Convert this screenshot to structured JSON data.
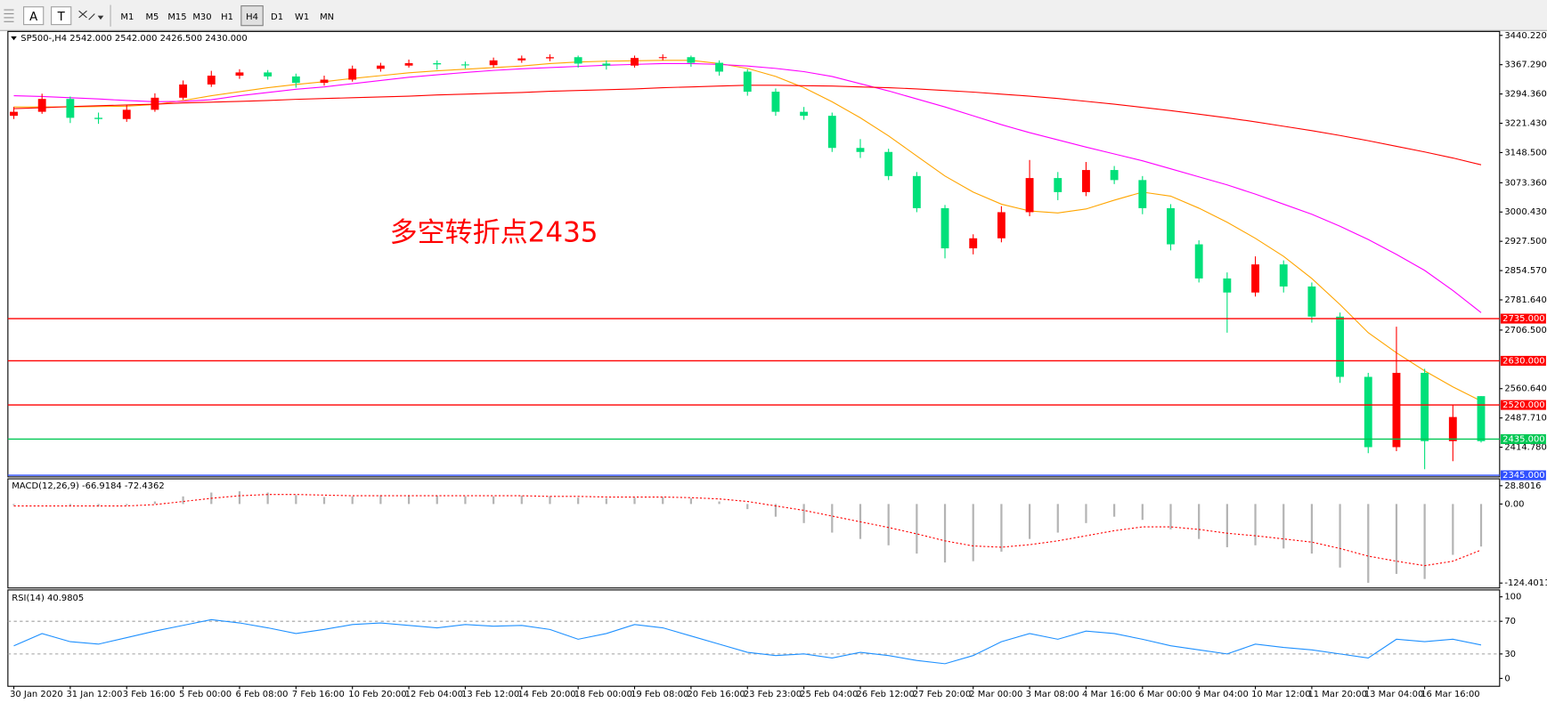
{
  "toolbar": {
    "tools": [
      "A",
      "T"
    ],
    "timeframes": [
      "M1",
      "M5",
      "M15",
      "M30",
      "H1",
      "H4",
      "D1",
      "W1",
      "MN"
    ],
    "active": "H4"
  },
  "chart_data": [
    {
      "type": "candlestick",
      "title": "SP500-,H4  2542.000 2542.000 2426.500 2430.000",
      "annotation": "多空转折点2435",
      "annotation_color": "#ff0000",
      "up_color": "#ff0000",
      "down_color": "#00e07a",
      "x": [
        "30 Jan 2020",
        null,
        "31 Jan 12:00",
        null,
        "3 Feb 16:00",
        null,
        "5 Feb 00:00",
        null,
        "6 Feb 08:00",
        null,
        "7 Feb 16:00",
        null,
        "10 Feb 20:00",
        null,
        "12 Feb 04:00",
        null,
        "13 Feb 12:00",
        null,
        "14 Feb 20:00",
        null,
        "18 Feb 00:00",
        null,
        "19 Feb 08:00",
        null,
        "20 Feb 16:00",
        null,
        "23 Feb 23:00",
        null,
        "25 Feb 04:00",
        null,
        "26 Feb 12:00",
        null,
        "27 Feb 20:00",
        null,
        "2 Mar 00:00",
        null,
        "3 Mar 08:00",
        null,
        "4 Mar 16:00",
        null,
        "6 Mar 00:00",
        null,
        "9 Mar 04:00",
        null,
        "10 Mar 12:00",
        null,
        "11 Mar 20:00",
        null,
        "13 Mar 04:00",
        null,
        "16 Mar 16:00",
        null,
        null
      ],
      "open": [
        3240,
        3250,
        3282,
        3235,
        3232,
        3255,
        3285,
        3318,
        3340,
        3348,
        3338,
        3322,
        3330,
        3357,
        3365,
        3371,
        3368,
        3366,
        3378,
        3383,
        3386,
        3370,
        3365,
        3384,
        3386,
        3372,
        3350,
        3300,
        3250,
        3240,
        3160,
        3150,
        3090,
        3010,
        2910,
        2935,
        3000,
        3085,
        3050,
        3105,
        3080,
        3010,
        2920,
        2835,
        2800,
        2870,
        2815,
        2740,
        2590,
        2415,
        2600,
        2430,
        2542
      ],
      "high": [
        3262,
        3295,
        3288,
        3248,
        3266,
        3296,
        3328,
        3352,
        3356,
        3354,
        3345,
        3340,
        3365,
        3372,
        3380,
        3378,
        3375,
        3385,
        3390,
        3393,
        3390,
        3378,
        3390,
        3393,
        3390,
        3378,
        3356,
        3308,
        3262,
        3248,
        3182,
        3158,
        3100,
        3018,
        2945,
        3015,
        3130,
        3100,
        3125,
        3115,
        3090,
        3020,
        2930,
        2850,
        2890,
        2880,
        2825,
        2750,
        2600,
        2715,
        2610,
        2520,
        2542
      ],
      "low": [
        3232,
        3245,
        3222,
        3220,
        3225,
        3250,
        3280,
        3312,
        3332,
        3330,
        3310,
        3315,
        3325,
        3350,
        3360,
        3355,
        3358,
        3360,
        3372,
        3376,
        3360,
        3355,
        3360,
        3378,
        3362,
        3340,
        3290,
        3240,
        3230,
        3150,
        3135,
        3080,
        3000,
        2885,
        2895,
        2925,
        2990,
        3030,
        3040,
        3070,
        2995,
        2905,
        2825,
        2700,
        2790,
        2800,
        2725,
        2575,
        2400,
        2405,
        2360,
        2380,
        2426.5
      ],
      "close": [
        3250,
        3282,
        3235,
        3232,
        3255,
        3285,
        3318,
        3340,
        3348,
        3338,
        3322,
        3330,
        3357,
        3365,
        3371,
        3368,
        3366,
        3378,
        3383,
        3386,
        3370,
        3365,
        3384,
        3386,
        3372,
        3350,
        3300,
        3250,
        3240,
        3160,
        3150,
        3090,
        3010,
        2910,
        2935,
        3000,
        3085,
        3050,
        3105,
        3080,
        3010,
        2920,
        2835,
        2800,
        2870,
        2815,
        2740,
        2590,
        2415,
        2600,
        2430,
        2490,
        2430
      ],
      "series": [
        {
          "color": "#ffa500",
          "values": [
            3262,
            3262,
            3262,
            3263,
            3264,
            3268,
            3278,
            3290,
            3300,
            3310,
            3318,
            3325,
            3333,
            3340,
            3347,
            3352,
            3356,
            3360,
            3364,
            3370,
            3374,
            3376,
            3377,
            3378,
            3378,
            3370,
            3358,
            3338,
            3310,
            3275,
            3235,
            3190,
            3140,
            3090,
            3050,
            3020,
            3003,
            2998,
            3008,
            3030,
            3050,
            3040,
            3010,
            2975,
            2935,
            2890,
            2835,
            2770,
            2700,
            2650,
            2605,
            2565,
            2530
          ]
        },
        {
          "color": "#ff00ff",
          "values": [
            3290,
            3288,
            3285,
            3282,
            3278,
            3275,
            3276,
            3280,
            3290,
            3298,
            3306,
            3312,
            3320,
            3328,
            3336,
            3342,
            3348,
            3353,
            3357,
            3360,
            3363,
            3366,
            3368,
            3370,
            3370,
            3368,
            3364,
            3358,
            3350,
            3338,
            3320,
            3302,
            3282,
            3262,
            3240,
            3218,
            3198,
            3180,
            3162,
            3145,
            3128,
            3108,
            3088,
            3068,
            3045,
            3020,
            2995,
            2965,
            2932,
            2895,
            2855,
            2805,
            2750
          ]
        },
        {
          "color": "#ff0000",
          "values": [
            3258,
            3260,
            3263,
            3265,
            3267,
            3269,
            3272,
            3274,
            3276,
            3278,
            3281,
            3283,
            3285,
            3287,
            3289,
            3292,
            3294,
            3296,
            3298,
            3301,
            3303,
            3305,
            3307,
            3310,
            3312,
            3314,
            3316,
            3316,
            3315,
            3314,
            3312,
            3310,
            3307,
            3303,
            3299,
            3294,
            3289,
            3283,
            3276,
            3269,
            3261,
            3253,
            3244,
            3235,
            3225,
            3214,
            3203,
            3191,
            3178,
            3164,
            3150,
            3135,
            3118
          ]
        }
      ],
      "levels": [
        {
          "value": 2735,
          "label": "2735.000",
          "color": "#ff0000"
        },
        {
          "value": 2630,
          "label": "2630.000",
          "color": "#ff0000"
        },
        {
          "value": 2520,
          "label": "2520.000",
          "color": "#ff0000"
        },
        {
          "value": 2435,
          "label": "2435.000",
          "color": "#00c853"
        },
        {
          "value": 2345,
          "label": "2345.000",
          "color": "#2f4fff"
        }
      ],
      "ylim": [
        2341,
        3450
      ],
      "yticks": [
        {
          "value": 3440.22,
          "label": "3440.220"
        },
        {
          "value": 3367.29,
          "label": "3367.290"
        },
        {
          "value": 3294.36,
          "label": "3294.360"
        },
        {
          "value": 3221.43,
          "label": "3221.430"
        },
        {
          "value": 3148.5,
          "label": "3148.500"
        },
        {
          "value": 3073.36,
          "label": "3073.360"
        },
        {
          "value": 3000.43,
          "label": "3000.430"
        },
        {
          "value": 2927.5,
          "label": "2927.500"
        },
        {
          "value": 2854.57,
          "label": "2854.570"
        },
        {
          "value": 2781.64,
          "label": "2781.640"
        },
        {
          "value": 2706.5,
          "label": "2706.500"
        },
        {
          "value": 2560.64,
          "label": "2560.640"
        },
        {
          "value": 2487.71,
          "label": "2487.710"
        },
        {
          "value": 2414.78,
          "label": "2414.780"
        }
      ]
    },
    {
      "type": "macd",
      "title": "MACD(12,26,9) -66.9184 -72.4362",
      "hist_color": "#b4b4b4",
      "signal_color": "#ff0000",
      "values": [
        -2,
        0,
        -3,
        -4,
        -2,
        4,
        12,
        18,
        20,
        18,
        14,
        11,
        12,
        14,
        14,
        13,
        12,
        12,
        13,
        12,
        10,
        9,
        10,
        11,
        9,
        4,
        -8,
        -20,
        -30,
        -45,
        -55,
        -65,
        -78,
        -92,
        -90,
        -75,
        -55,
        -45,
        -30,
        -20,
        -25,
        -40,
        -55,
        -68,
        -65,
        -70,
        -78,
        -100,
        -124,
        -110,
        -118,
        -80,
        -66.9184
      ],
      "signal": [
        -3,
        -3,
        -3,
        -3,
        -3,
        -1,
        4,
        9,
        13,
        15,
        15,
        14,
        13,
        13,
        13,
        13,
        13,
        13,
        13,
        12,
        12,
        11,
        11,
        11,
        10,
        8,
        4,
        -3,
        -10,
        -19,
        -28,
        -37,
        -47,
        -58,
        -66,
        -68,
        -64,
        -58,
        -50,
        -42,
        -36,
        -36,
        -40,
        -46,
        -50,
        -55,
        -60,
        -70,
        -82,
        -90,
        -97,
        -90,
        -72.4362
      ],
      "ylim": [
        -124.4011,
        28.8016
      ],
      "yticks": [
        28.8016,
        {
          "value": 0,
          "label": "0.00"
        },
        -124.4011
      ]
    },
    {
      "type": "line",
      "title": "RSI(14) 40.9805",
      "color": "#1e90ff",
      "values": [
        40,
        55,
        45,
        42,
        50,
        58,
        65,
        72,
        68,
        62,
        55,
        60,
        66,
        68,
        65,
        62,
        66,
        64,
        65,
        60,
        48,
        55,
        66,
        62,
        52,
        42,
        32,
        28,
        30,
        25,
        32,
        28,
        22,
        18,
        28,
        45,
        55,
        48,
        58,
        55,
        48,
        40,
        35,
        30,
        42,
        38,
        35,
        30,
        25,
        48,
        45,
        48,
        40.9805
      ],
      "ylim": [
        0,
        100
      ],
      "yticks": [
        100,
        70,
        30,
        0
      ]
    }
  ]
}
